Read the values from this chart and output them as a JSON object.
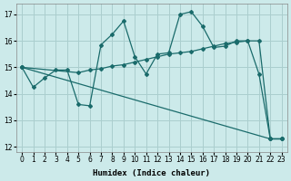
{
  "xlabel": "Humidex (Indice chaleur)",
  "ylabel": "",
  "background_color": "#cceaea",
  "grid_color": "#aacece",
  "line_color": "#1a6b6b",
  "xlim": [
    -0.5,
    23.5
  ],
  "ylim": [
    11.8,
    17.4
  ],
  "yticks": [
    12,
    13,
    14,
    15,
    16,
    17
  ],
  "xticks": [
    0,
    1,
    2,
    3,
    4,
    5,
    6,
    7,
    8,
    9,
    10,
    11,
    12,
    13,
    14,
    15,
    16,
    17,
    18,
    19,
    20,
    21,
    22,
    23
  ],
  "line1_x": [
    0,
    1,
    2,
    3,
    4,
    5,
    6,
    7,
    8,
    9,
    10,
    11,
    12,
    13,
    14,
    15,
    16,
    17,
    18,
    19,
    20,
    21,
    22,
    23
  ],
  "line1_y": [
    15.0,
    14.25,
    14.6,
    14.9,
    14.9,
    13.6,
    13.55,
    15.85,
    16.25,
    16.75,
    15.4,
    14.75,
    15.5,
    15.55,
    17.0,
    17.1,
    16.55,
    15.75,
    15.8,
    16.0,
    16.0,
    14.75,
    12.3,
    12.3
  ],
  "line2_x": [
    0,
    5,
    6,
    7,
    8,
    9,
    10,
    11,
    12,
    13,
    14,
    15,
    16,
    17,
    18,
    19,
    20,
    21,
    22,
    23
  ],
  "line2_y": [
    15.0,
    14.8,
    14.9,
    14.95,
    15.05,
    15.1,
    15.2,
    15.3,
    15.4,
    15.5,
    15.55,
    15.6,
    15.7,
    15.8,
    15.9,
    15.95,
    16.0,
    16.0,
    12.3,
    12.3
  ],
  "line3_x": [
    0,
    22,
    23
  ],
  "line3_y": [
    15.0,
    12.3,
    12.3
  ]
}
